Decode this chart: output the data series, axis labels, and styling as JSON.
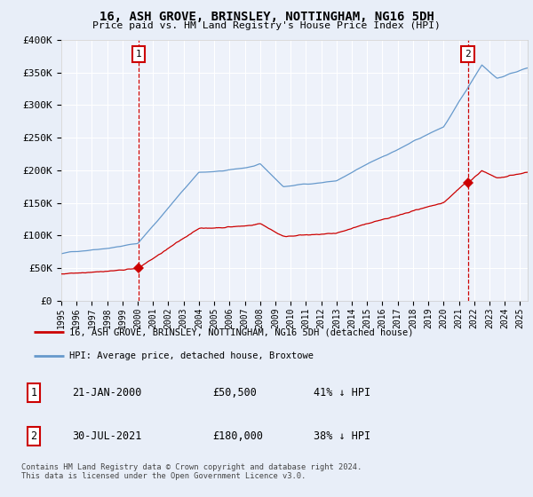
{
  "title": "16, ASH GROVE, BRINSLEY, NOTTINGHAM, NG16 5DH",
  "subtitle": "Price paid vs. HM Land Registry's House Price Index (HPI)",
  "ylim": [
    0,
    400000
  ],
  "xlim_start": 1995.0,
  "xlim_end": 2025.5,
  "yticks": [
    0,
    50000,
    100000,
    150000,
    200000,
    250000,
    300000,
    350000,
    400000
  ],
  "ytick_labels": [
    "£0",
    "£50K",
    "£100K",
    "£150K",
    "£200K",
    "£250K",
    "£300K",
    "£350K",
    "£400K"
  ],
  "xticks": [
    1995,
    1996,
    1997,
    1998,
    1999,
    2000,
    2001,
    2002,
    2003,
    2004,
    2005,
    2006,
    2007,
    2008,
    2009,
    2010,
    2011,
    2012,
    2013,
    2014,
    2015,
    2016,
    2017,
    2018,
    2019,
    2020,
    2021,
    2022,
    2023,
    2024,
    2025
  ],
  "sale1_x": 2000.055,
  "sale1_y": 50500,
  "sale1_label": "1",
  "sale2_x": 2021.58,
  "sale2_y": 180000,
  "sale2_label": "2",
  "legend_property": "16, ASH GROVE, BRINSLEY, NOTTINGHAM, NG16 5DH (detached house)",
  "legend_hpi": "HPI: Average price, detached house, Broxtowe",
  "annotation1_date": "21-JAN-2000",
  "annotation1_price": "£50,500",
  "annotation1_hpi": "41% ↓ HPI",
  "annotation2_date": "30-JUL-2021",
  "annotation2_price": "£180,000",
  "annotation2_hpi": "38% ↓ HPI",
  "footer": "Contains HM Land Registry data © Crown copyright and database right 2024.\nThis data is licensed under the Open Government Licence v3.0.",
  "property_color": "#cc0000",
  "hpi_color": "#6699cc",
  "background_color": "#e8eef8",
  "plot_bg": "#eef2fa",
  "grid_color": "#ffffff"
}
